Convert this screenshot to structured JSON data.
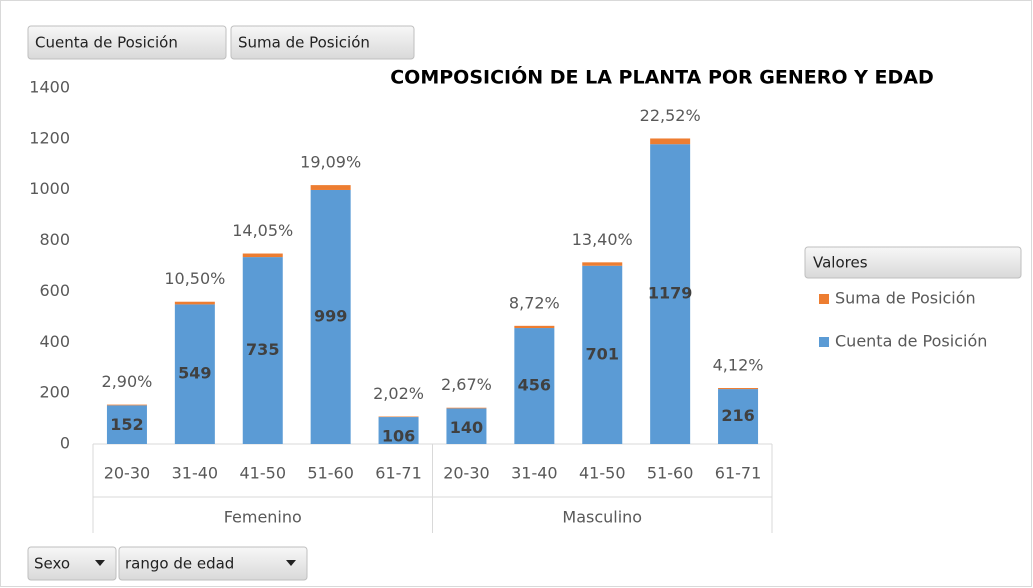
{
  "chart_data": {
    "type": "bar",
    "stacked": true,
    "title": "COMPOSICIÓN DE LA PLANTA POR GENERO Y EDAD",
    "field_buttons": [
      "Cuenta de Posición",
      "Suma de Posición"
    ],
    "filter_buttons": [
      "Sexo",
      "rango de edad"
    ],
    "legend_title": "Valores",
    "legend_position": "right",
    "groups": [
      "Femenino",
      "Masculino"
    ],
    "categories": [
      "20-30",
      "31-40",
      "41-50",
      "51-60",
      "61-71",
      "20-30",
      "31-40",
      "41-50",
      "51-60",
      "61-71"
    ],
    "series": [
      {
        "name": "Cuenta de Posición",
        "color": "#5b9bd5",
        "values": [
          152,
          549,
          735,
          999,
          106,
          140,
          456,
          701,
          1179,
          216
        ]
      },
      {
        "name": "Suma de Posición",
        "color": "#ed7d31",
        "values": [
          2.9,
          10.5,
          14.05,
          19.09,
          2.02,
          2.67,
          8.72,
          13.4,
          22.52,
          4.12
        ],
        "value_labels": [
          "2,90%",
          "10,50%",
          "14,05%",
          "19,09%",
          "2,02%",
          "2,67%",
          "8,72%",
          "13,40%",
          "22,52%",
          "4,12%"
        ]
      }
    ],
    "ylim": [
      0,
      1400
    ],
    "yticks": [
      0,
      200,
      400,
      600,
      800,
      1000,
      1200,
      1400
    ],
    "grid": false
  }
}
